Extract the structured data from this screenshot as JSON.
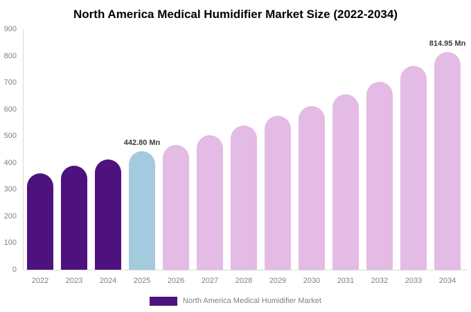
{
  "title": "North America Medical Humidifier Market Size (2022-2034)",
  "colors": {
    "historical": "#4d127e",
    "base_year": "#a4cbdd",
    "forecast": "#e4bbe4",
    "axis_line": "#d8d8d8",
    "tick_text": "#808080",
    "annotation_text": "#3a3a3a",
    "legend_text": "#808080",
    "legend_swatch": "#4d127e"
  },
  "legend": {
    "label": "North America Medical Humidifier Market"
  },
  "chart_data": {
    "type": "bar",
    "title": "North America Medical Humidifier Market Size (2022-2034)",
    "series_name": "North America Medical Humidifier Market",
    "categories": [
      "2022",
      "2023",
      "2024",
      "2025",
      "2026",
      "2027",
      "2028",
      "2029",
      "2030",
      "2031",
      "2032",
      "2033",
      "2034"
    ],
    "values": [
      361,
      388,
      412,
      442.8,
      467,
      503,
      539,
      576,
      612,
      656,
      703,
      762,
      814.95
    ],
    "unit": "Mn",
    "bar_roles": [
      "historical",
      "historical",
      "historical",
      "base_year",
      "forecast",
      "forecast",
      "forecast",
      "forecast",
      "forecast",
      "forecast",
      "forecast",
      "forecast",
      "forecast"
    ],
    "annotations": [
      {
        "index": 3,
        "text": "442.80 Mn"
      },
      {
        "index": 12,
        "text": "814.95 Mn"
      }
    ],
    "ylim": [
      0,
      900
    ],
    "yticks": [
      0,
      100,
      200,
      300,
      400,
      500,
      600,
      700,
      800,
      900
    ],
    "grid": false,
    "legend_position": "bottom"
  }
}
